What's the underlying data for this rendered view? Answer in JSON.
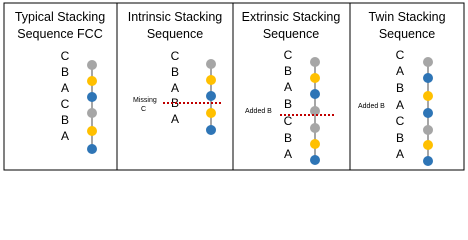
{
  "panels": [
    {
      "title": [
        "Typical Stacking",
        "Sequence FCC"
      ],
      "letters": [
        "C",
        "B",
        "A",
        "C",
        "B",
        "A"
      ]
    },
    {
      "title": [
        "Intrinsic Stacking",
        "Sequence"
      ],
      "letters": [
        "C",
        "B",
        "A",
        "B",
        "A"
      ],
      "note": [
        "Missing",
        "C"
      ]
    },
    {
      "title": [
        "Extrinsic Stacking",
        "Sequence"
      ],
      "letters": [
        "C",
        "B",
        "A",
        "B",
        "C",
        "B",
        "A"
      ],
      "note": [
        "Added B"
      ]
    },
    {
      "title": [
        "Twin Stacking",
        "Sequence"
      ],
      "letters": [
        "C",
        "A",
        "B",
        "A",
        "C",
        "B",
        "A"
      ],
      "note": [
        "Added B"
      ]
    }
  ]
}
